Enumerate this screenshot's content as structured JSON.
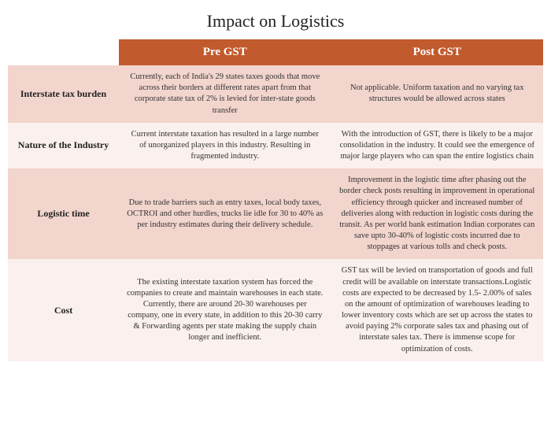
{
  "title": "Impact on Logistics",
  "columns": [
    "Pre GST",
    "Post GST"
  ],
  "rows": [
    {
      "label": "Interstate tax burden",
      "pre": "Currently, each of India's 29 states taxes goods that move across their borders at different rates apart from that corporate state tax of 2% is levied for inter-state goods transfer",
      "post": "Not applicable. Uniform taxation and no varying tax structures would be allowed across states"
    },
    {
      "label": "Nature of the Industry",
      "pre": "Current interstate taxation has resulted in a large number of unorganized players in this industry. Resulting in fragmented industry.",
      "post": "With the introduction of GST, there is likely to be a major consolidation in the industry. It could see the emergence of major large players who can span the entire logistics chain"
    },
    {
      "label": "Logistic time",
      "pre": "Due to trade barriers such as entry taxes, local body taxes, OCTROI and other hurdles, trucks lie idle for 30 to 40% as per industry estimates during their delivery schedule.",
      "post": "Improvement in the logistic time after phasing out the border check posts resulting in improvement in operational efficiency through quicker and increased number of deliveries along with reduction in logistic costs during the transit. As per world bank estimation Indian corporates can save upto 30-40% of logistic costs incurred due to stoppages at various tolls and check posts."
    },
    {
      "label": "Cost",
      "pre": "The existing interstate taxation system has forced the companies to create and maintain warehouses in each state. Currently, there are around 20-30 warehouses per company, one in every state, in addition to this 20-30 carry & Forwarding agents per state making the supply chain longer and inefficient.",
      "post": "GST tax will be levied on transportation of goods and full credit will be available on interstate transactions.Logistic costs are expected to be decreased by 1.5- 2.00% of sales on the amount of optimization of warehouses leading to lower inventory costs which are set up across the states to avoid paying 2% corporate sales tax and phasing out of interstate sales tax. There is immense scope for optimization of costs."
    }
  ],
  "colors": {
    "header_bg": "#c15a2d",
    "header_text": "#ffffff",
    "row_dark": "#f2d5cd",
    "row_light": "#faf0ed"
  }
}
